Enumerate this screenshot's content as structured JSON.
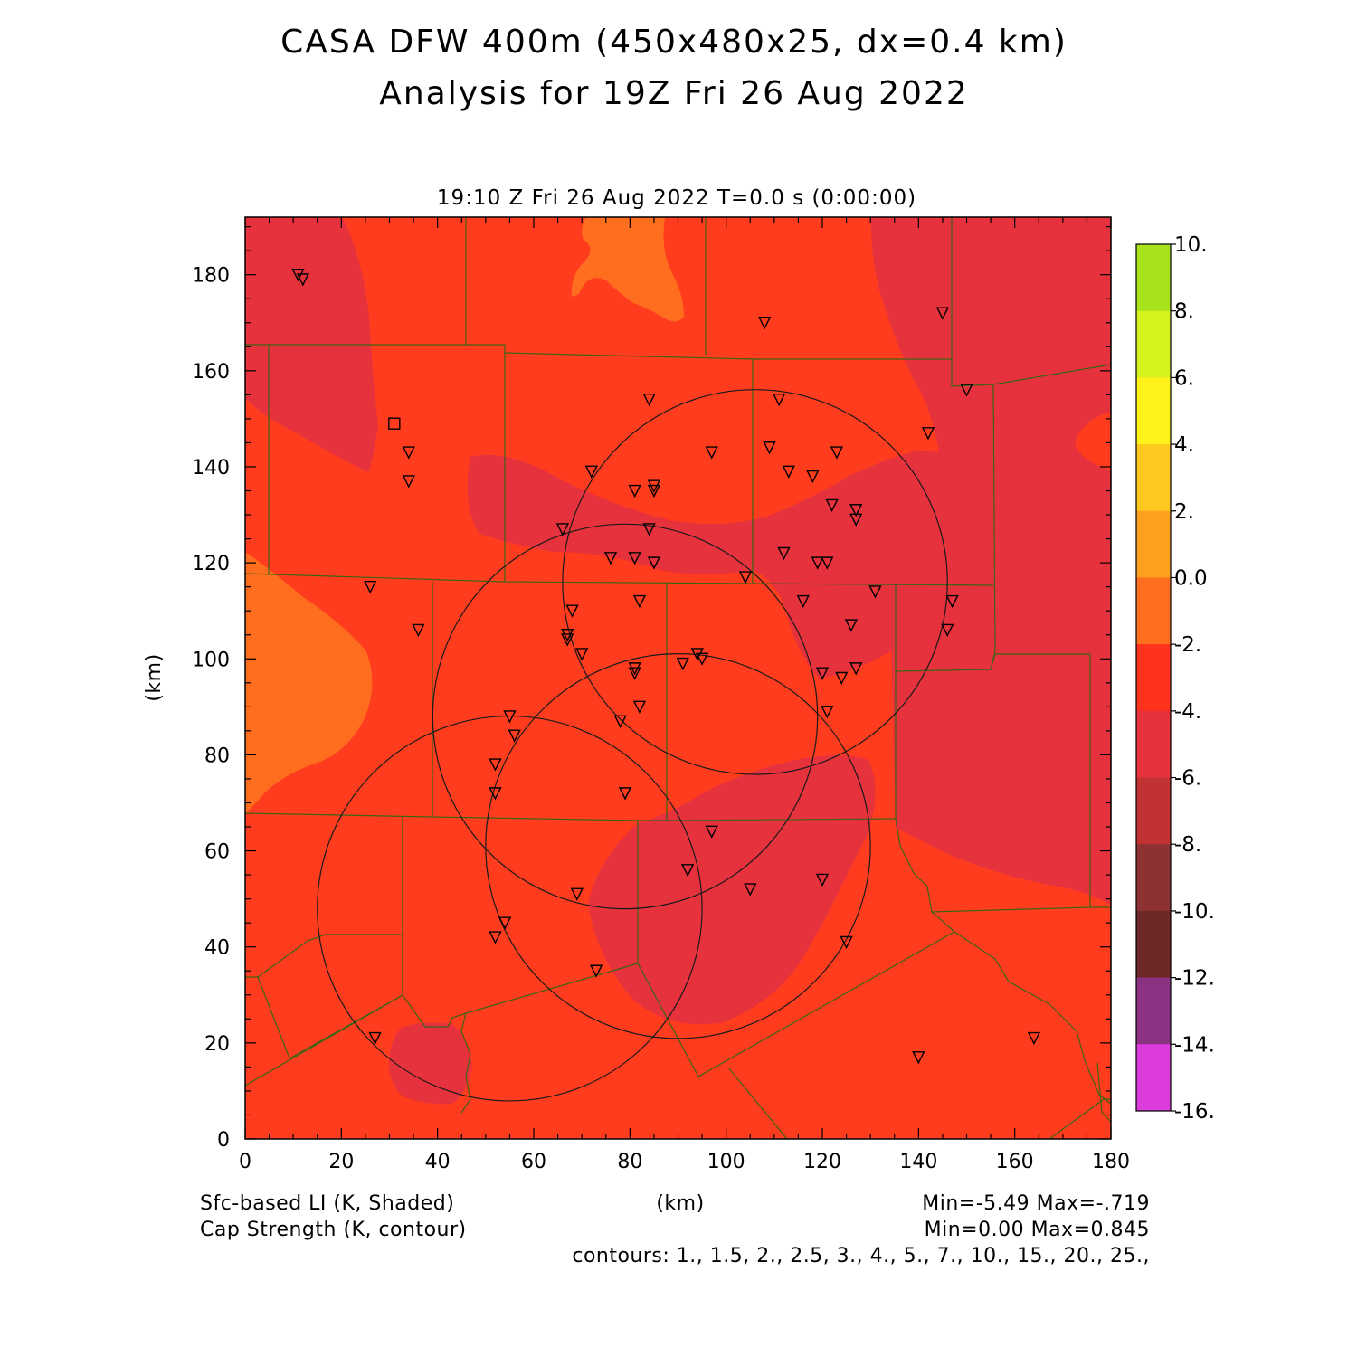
{
  "chart_data": {
    "type": "heatmap",
    "title": "CASA DFW 400m (450x480x25, dx=0.4 km)",
    "subtitle": "Analysis for 19Z Fri 26 Aug 2022",
    "time_label": "19:10 Z Fri 26 Aug 2022    T=0.0 s (0:00:00)",
    "xlabel": "(km)",
    "ylabel": "(km)",
    "xlim": [
      0,
      180
    ],
    "ylim": [
      0,
      192
    ],
    "x_ticks": [
      "0",
      "20",
      "40",
      "60",
      "80",
      "100",
      "120",
      "140",
      "160",
      "180"
    ],
    "y_ticks": [
      "0",
      "20",
      "40",
      "60",
      "80",
      "100",
      "120",
      "140",
      "160",
      "180"
    ],
    "colorbar": {
      "labels": [
        "10.",
        "8.",
        "6.",
        "4.",
        "2.",
        "0.0",
        "-2.",
        "-4.",
        "-6.",
        "-8.",
        "-10.",
        "-12.",
        "-14.",
        "-16."
      ],
      "colors": [
        "#a8e21a",
        "#d6f21c",
        "#fff21a",
        "#ffc81e",
        "#ffa01e",
        "#ff6e1e",
        "#ff321e",
        "#e6323c",
        "#c33232",
        "#8c3232",
        "#6e2828",
        "#8c3282",
        "#be32be",
        "#dc3cdc"
      ]
    },
    "field_colors": {
      "base": "#ff3c1e",
      "orange": "#ff6e1e",
      "red": "#e6323c"
    },
    "radar_circles": [
      {
        "cx": 106,
        "cy": 116
      },
      {
        "cx": 79,
        "cy": 88
      },
      {
        "cx": 90,
        "cy": 61
      },
      {
        "cx": 55,
        "cy": 48
      }
    ],
    "stations": [
      [
        11,
        180
      ],
      [
        12,
        179
      ],
      [
        34,
        143
      ],
      [
        34,
        137
      ],
      [
        26,
        115
      ],
      [
        36,
        106
      ],
      [
        84,
        154
      ],
      [
        111,
        154
      ],
      [
        97,
        143
      ],
      [
        109,
        144
      ],
      [
        123,
        143
      ],
      [
        72,
        139
      ],
      [
        81,
        135
      ],
      [
        85,
        136
      ],
      [
        85,
        135
      ],
      [
        113,
        139
      ],
      [
        118,
        138
      ],
      [
        122,
        132
      ],
      [
        127,
        131
      ],
      [
        127,
        129
      ],
      [
        66,
        127
      ],
      [
        84,
        127
      ],
      [
        76,
        121
      ],
      [
        81,
        121
      ],
      [
        85,
        120
      ],
      [
        112,
        122
      ],
      [
        119,
        120
      ],
      [
        121,
        120
      ],
      [
        104,
        117
      ],
      [
        82,
        112
      ],
      [
        116,
        112
      ],
      [
        131,
        114
      ],
      [
        147,
        112
      ],
      [
        146,
        106
      ],
      [
        126,
        107
      ],
      [
        68,
        110
      ],
      [
        67,
        105
      ],
      [
        67,
        104
      ],
      [
        70,
        101
      ],
      [
        94,
        101
      ],
      [
        95,
        100
      ],
      [
        91,
        99
      ],
      [
        81,
        98
      ],
      [
        81,
        97
      ],
      [
        120,
        97
      ],
      [
        124,
        96
      ],
      [
        127,
        98
      ],
      [
        82,
        90
      ],
      [
        121,
        89
      ],
      [
        78,
        87
      ],
      [
        55,
        88
      ],
      [
        56,
        84
      ],
      [
        52,
        78
      ],
      [
        52,
        72
      ],
      [
        79,
        72
      ],
      [
        97,
        64
      ],
      [
        92,
        56
      ],
      [
        69,
        51
      ],
      [
        105,
        52
      ],
      [
        120,
        54
      ],
      [
        54,
        45
      ],
      [
        52,
        42
      ],
      [
        125,
        41
      ],
      [
        73,
        35
      ],
      [
        27,
        21
      ],
      [
        140,
        17
      ],
      [
        164,
        21
      ],
      [
        108,
        170
      ],
      [
        145,
        172
      ],
      [
        150,
        156
      ],
      [
        142,
        147
      ]
    ],
    "stations_square": [
      [
        31,
        149
      ]
    ],
    "field_label": "Sfc-based LI (K, Shaded)",
    "field_stats": "Min=-5.49 Max=-.719",
    "contour_label": "Cap Strength (K, contour)",
    "contour_stats": "Min=0.00 Max=0.845",
    "contours_text": "contours: 1., 1.5, 2., 2.5, 3., 4., 5., 7., 10., 15., 20., 25.,"
  }
}
